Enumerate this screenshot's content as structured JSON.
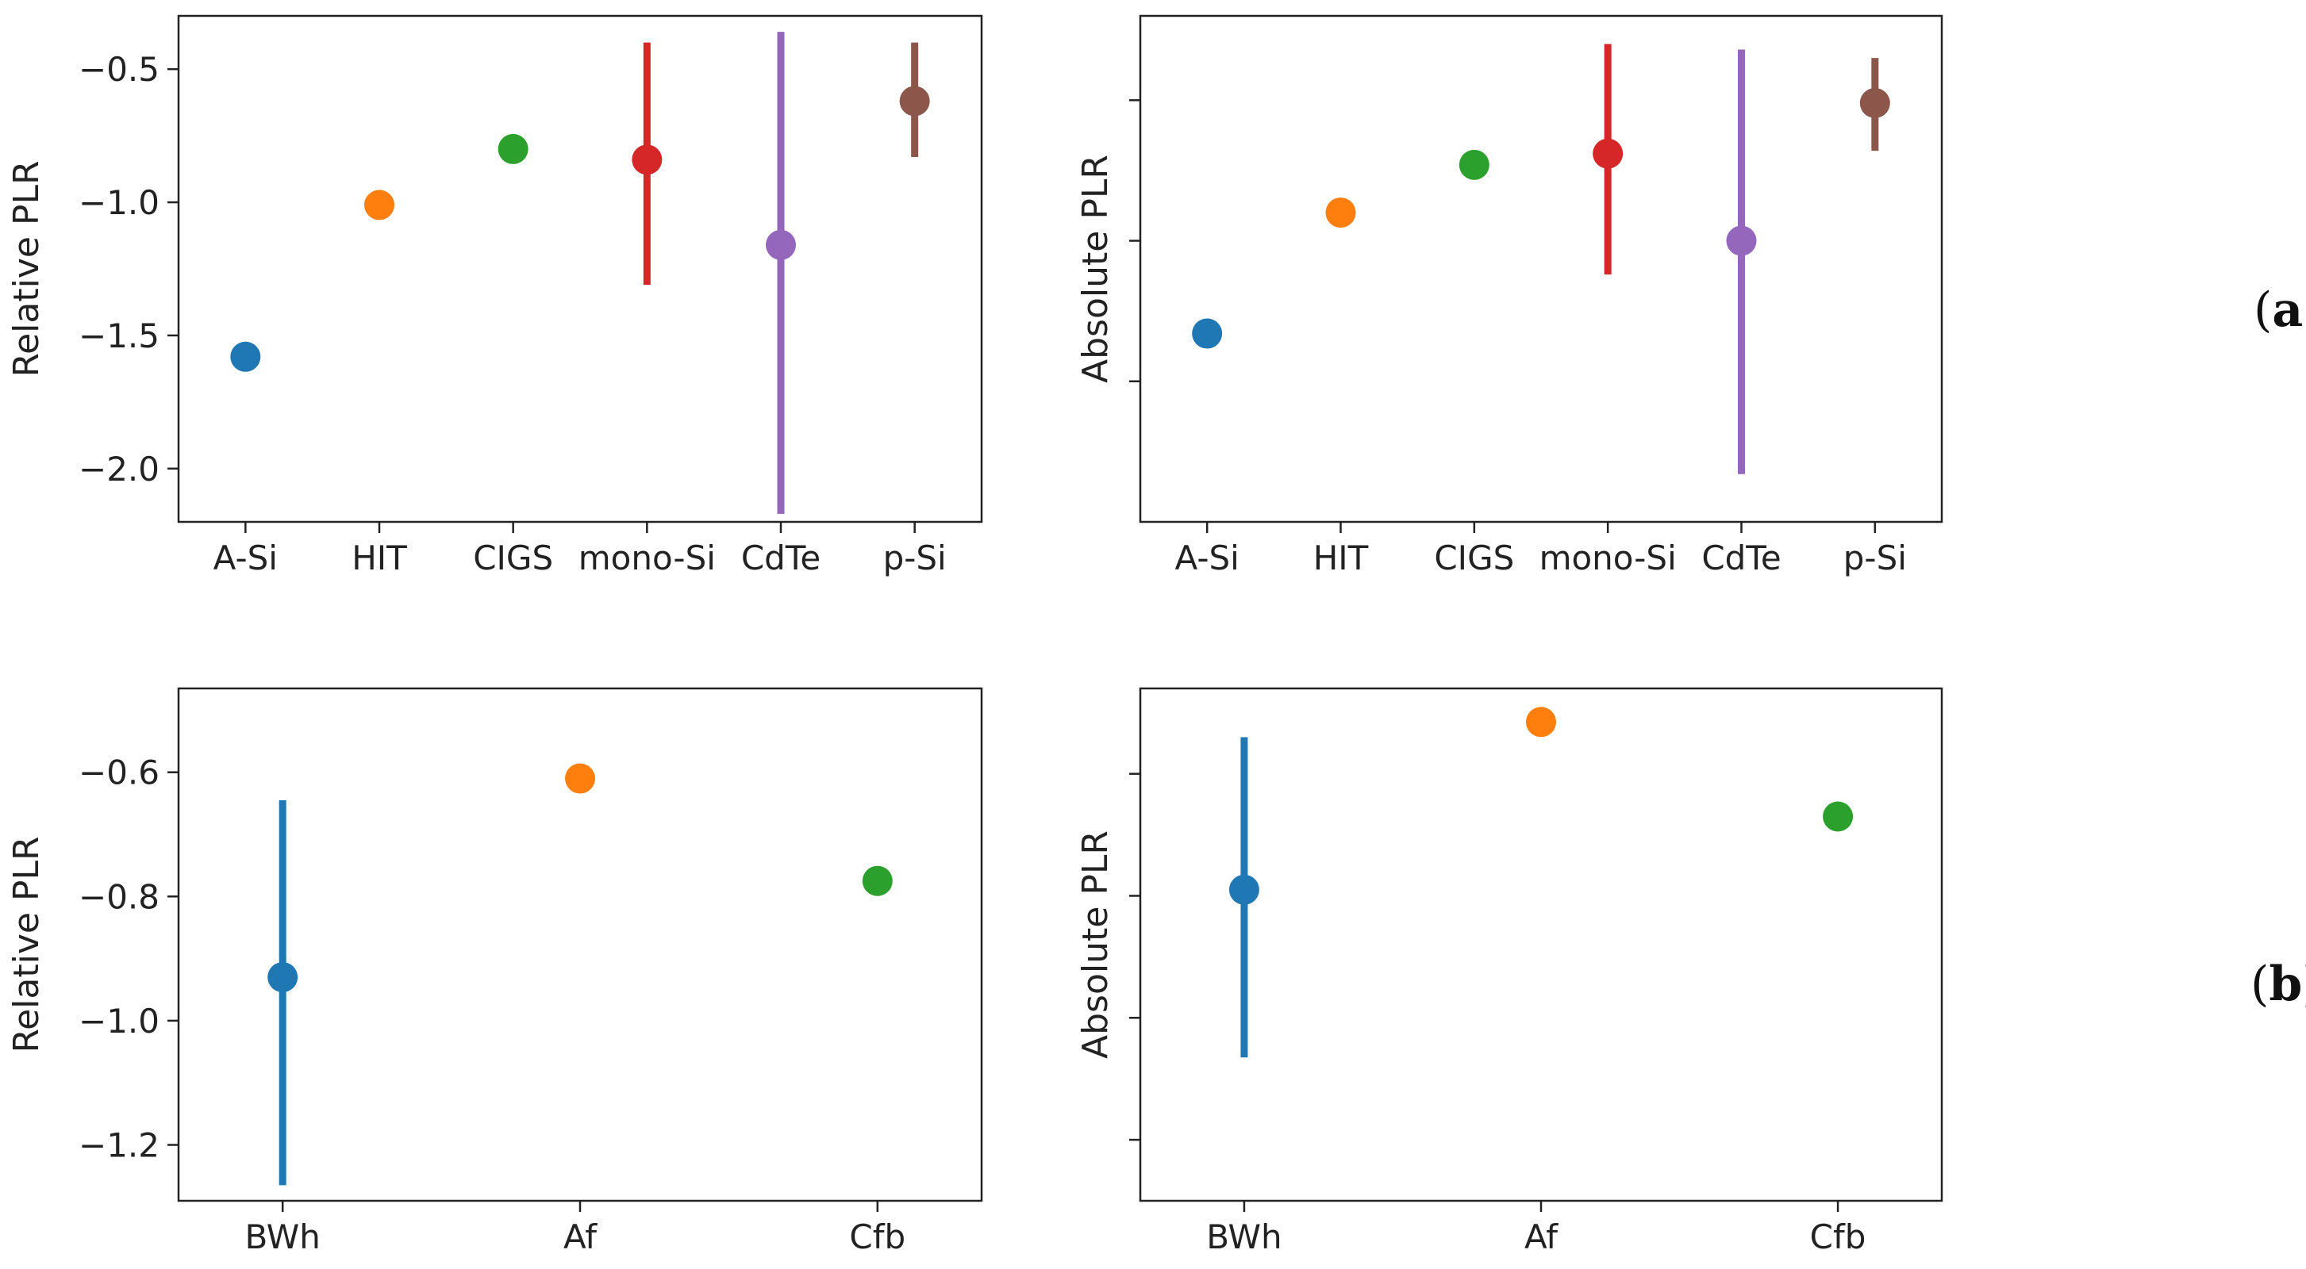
{
  "panel_labels": {
    "a_open": "(",
    "a_letter": "a",
    "a_close": ")",
    "b_open": "(",
    "b_letter": "b",
    "b_close": ")"
  },
  "chart_data": [
    {
      "id": "rel-tech",
      "type": "scatter",
      "ylabel": "Relative PLR",
      "show_tick_labels": true,
      "categories": [
        "A-Si",
        "HIT",
        "CIGS",
        "mono-Si",
        "CdTe",
        "p-Si"
      ],
      "values": [
        -1.58,
        -1.01,
        -0.8,
        -0.84,
        -1.16,
        -0.62
      ],
      "error_low": [
        null,
        null,
        null,
        -1.31,
        -2.17,
        -0.83
      ],
      "error_high": [
        null,
        null,
        null,
        -0.4,
        -0.36,
        -0.4
      ],
      "colors": [
        "#1f77b4",
        "#ff7f0e",
        "#2ca02c",
        "#d62728",
        "#9467bd",
        "#8c564b"
      ],
      "ylim": [
        -2.2,
        -0.3
      ],
      "yticks": [
        -2.0,
        -1.5,
        -1.0,
        -0.5
      ],
      "ytick_labels": [
        "−2.0",
        "−1.5",
        "−1.0",
        "−0.5"
      ]
    },
    {
      "id": "abs-tech",
      "type": "scatter",
      "ylabel": "Absolute PLR",
      "show_tick_labels": false,
      "categories": [
        "A-Si",
        "HIT",
        "CIGS",
        "mono-Si",
        "CdTe",
        "p-Si"
      ],
      "values": [
        -1.33,
        -0.9,
        -0.73,
        -0.69,
        -1.0,
        -0.51
      ],
      "error_low": [
        null,
        null,
        null,
        -1.12,
        -1.83,
        -0.68
      ],
      "error_high": [
        null,
        null,
        null,
        -0.3,
        -0.32,
        -0.35
      ],
      "colors": [
        "#1f77b4",
        "#ff7f0e",
        "#2ca02c",
        "#d62728",
        "#9467bd",
        "#8c564b"
      ],
      "ylim": [
        -2.0,
        -0.2
      ],
      "yticks": [
        -1.5,
        -1.0,
        -0.5,
        -0.0
      ],
      "ytick_labels": [
        "",
        "",
        "",
        ""
      ]
    },
    {
      "id": "rel-climate",
      "type": "scatter",
      "ylabel": "Relative PLR",
      "show_tick_labels": true,
      "categories": [
        "BWh",
        "Af",
        "Cfb"
      ],
      "values": [
        -0.93,
        -0.61,
        -0.775
      ],
      "error_low": [
        -1.265,
        null,
        null
      ],
      "error_high": [
        -0.645,
        null,
        null
      ],
      "colors": [
        "#1f77b4",
        "#ff7f0e",
        "#2ca02c"
      ],
      "ylim": [
        -1.29,
        -0.465
      ],
      "yticks": [
        -1.2,
        -1.0,
        -0.8,
        -0.6
      ],
      "ytick_labels": [
        "−1.2",
        "−1.0",
        "−0.8",
        "−0.6"
      ]
    },
    {
      "id": "abs-climate",
      "type": "scatter",
      "ylabel": "Absolute PLR",
      "show_tick_labels": false,
      "categories": [
        "BWh",
        "Af",
        "Cfb"
      ],
      "values": [
        -0.79,
        -0.515,
        -0.67
      ],
      "error_low": [
        -1.065,
        null,
        null
      ],
      "error_high": [
        -0.54,
        null,
        null
      ],
      "colors": [
        "#1f77b4",
        "#ff7f0e",
        "#2ca02c"
      ],
      "ylim": [
        -1.3,
        -0.46
      ],
      "yticks": [
        -1.2,
        -1.0,
        -0.8,
        -0.6
      ],
      "ytick_labels": [
        "",
        "",
        "",
        ""
      ]
    }
  ]
}
